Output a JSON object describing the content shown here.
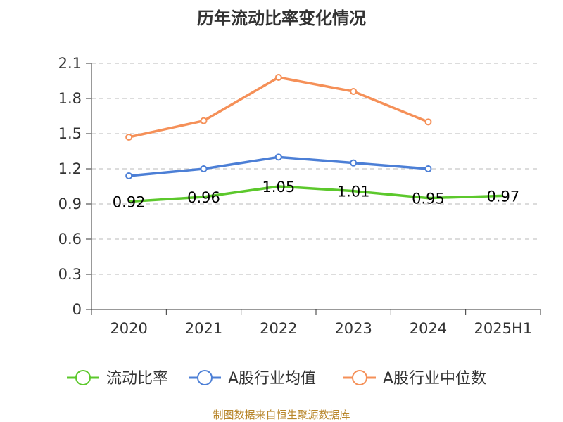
{
  "chart_data": {
    "type": "line",
    "title": "历年流动比率变化情况",
    "categories": [
      "2020",
      "2021",
      "2022",
      "2023",
      "2024",
      "2025H1"
    ],
    "ylim": [
      0,
      2.1
    ],
    "yticks": [
      "0",
      "0.3",
      "0.6",
      "0.9",
      "1.2",
      "1.5",
      "1.8",
      "2.1"
    ],
    "grid": true,
    "legend_position": "bottom",
    "series": [
      {
        "name": "流动比率",
        "color": "#5cc82c",
        "values": [
          0.92,
          0.96,
          1.05,
          1.01,
          0.95,
          0.97
        ],
        "labels": [
          "0.92",
          "0.96",
          "1.05",
          "1.01",
          "0.95",
          "0.97"
        ],
        "show_labels": true,
        "show_markers": false
      },
      {
        "name": "A股行业均值",
        "color": "#4c7fd6",
        "values": [
          1.14,
          1.2,
          1.3,
          1.25,
          1.2,
          null
        ],
        "show_labels": false,
        "show_markers": true
      },
      {
        "name": "A股行业中位数",
        "color": "#f59058",
        "values": [
          1.47,
          1.61,
          1.98,
          1.86,
          1.6,
          null
        ],
        "show_labels": false,
        "show_markers": true
      }
    ]
  },
  "source_text": "制图数据来自恒生聚源数据库"
}
